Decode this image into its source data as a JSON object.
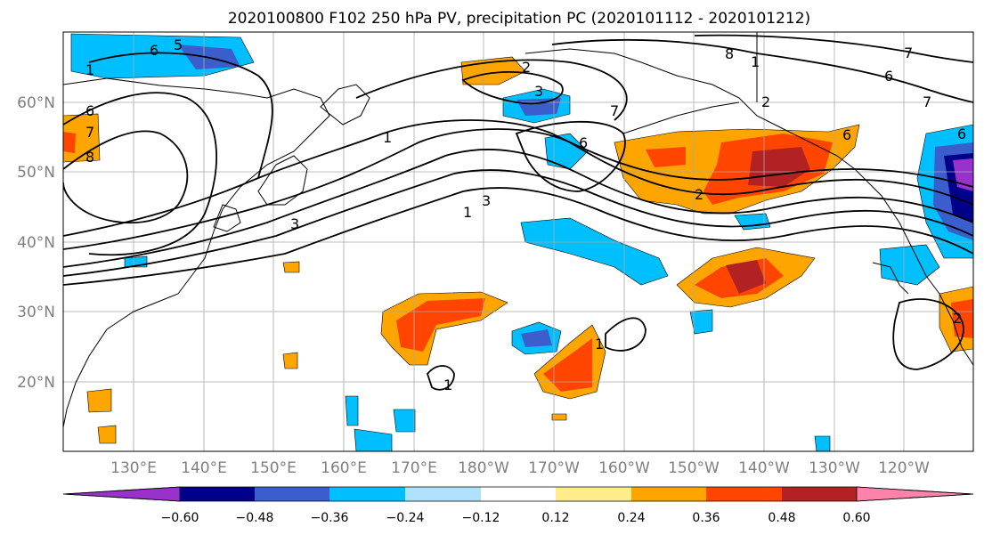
{
  "title": "2020100800 F102 250 hPa PV, precipitation PC (2020101112 - 2020101212)",
  "map": {
    "lon_ticks": [
      "130°E",
      "140°E",
      "150°E",
      "160°E",
      "170°E",
      "180°W",
      "170°W",
      "160°W",
      "150°W",
      "140°W",
      "130°W",
      "120°W"
    ],
    "lat_ticks": [
      "20°N",
      "30°N",
      "40°N",
      "50°N",
      "60°N"
    ],
    "contour_labels": [
      "1",
      "6",
      "5",
      "6",
      "7",
      "8",
      "2",
      "3",
      "3",
      "1",
      "7",
      "6",
      "8",
      "1",
      "6",
      "7",
      "6",
      "3",
      "1",
      "2",
      "7",
      "2",
      "6",
      "2",
      "1",
      "1"
    ]
  },
  "colorbar": {
    "labels": [
      "−0.60",
      "−0.48",
      "−0.36",
      "−0.24",
      "−0.12",
      "0.12",
      "0.24",
      "0.36",
      "0.48",
      "0.60"
    ],
    "colors": [
      "#9932cc",
      "#00008b",
      "#3a5fcd",
      "#00bfff",
      "#b0e2ff",
      "#ffffff",
      "#ffec8b",
      "#ffa500",
      "#ff4500",
      "#b22222",
      "#ff82ab"
    ]
  }
}
